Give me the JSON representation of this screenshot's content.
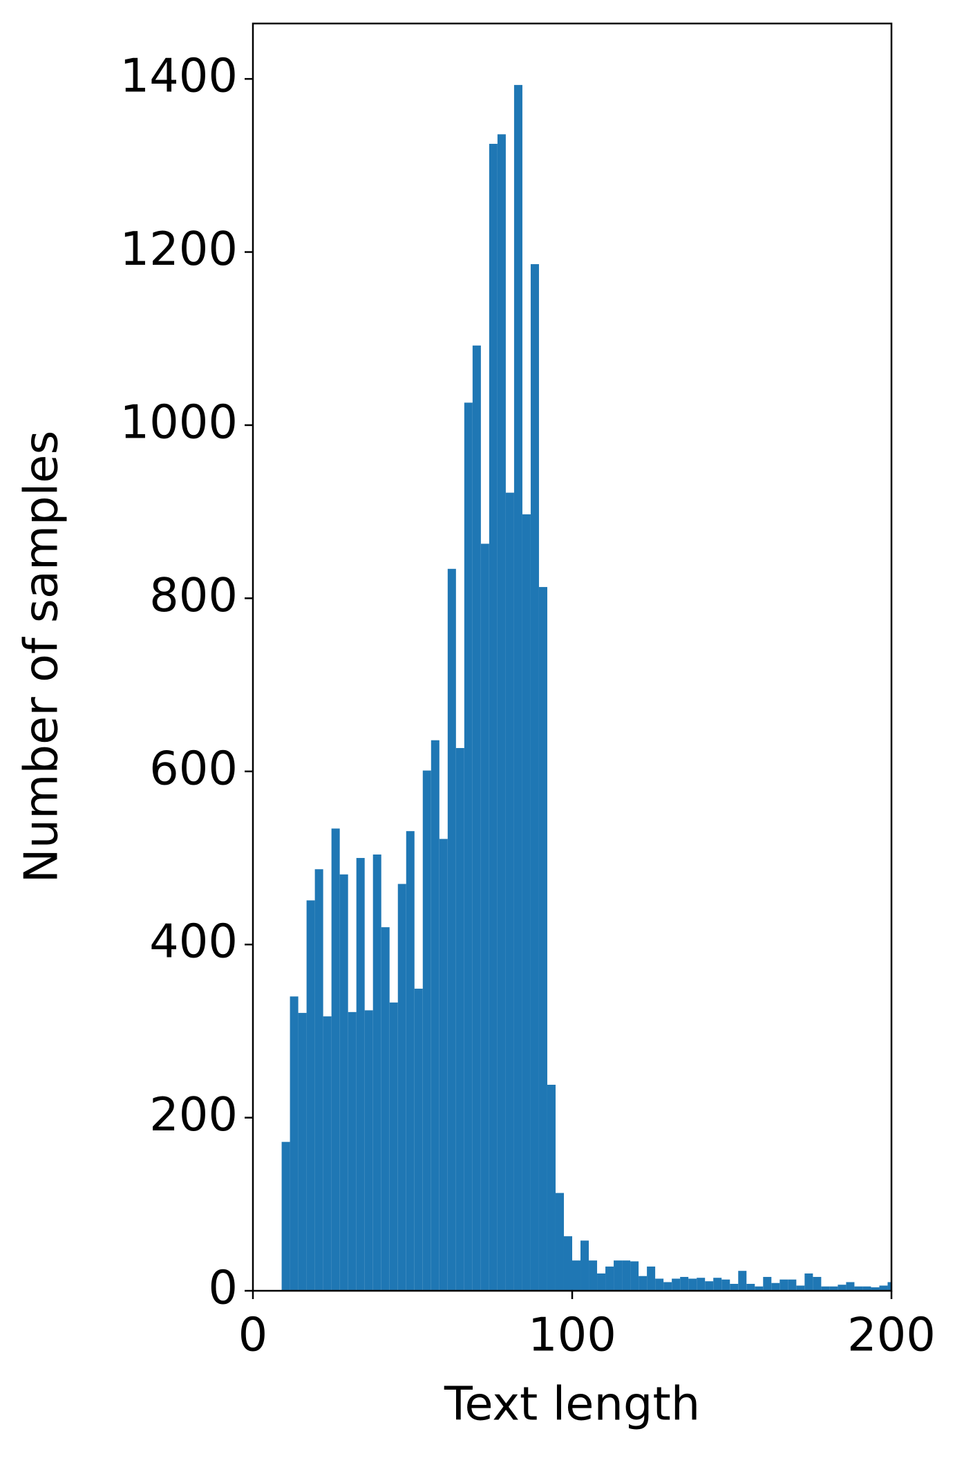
{
  "chart_data": {
    "type": "histogram",
    "xlabel": "Text length",
    "ylabel": "Number of samples",
    "color": "#1f77b4",
    "bins": [
      9,
      11.6,
      14.2,
      16.8,
      19.4,
      22,
      24.6,
      27.2,
      29.8,
      32.4,
      35,
      37.6,
      40.2,
      42.8,
      45.4,
      48,
      50.6,
      53.2,
      55.8,
      58.4,
      61,
      63.6,
      66.2,
      68.8,
      71.4,
      74,
      76.6,
      79.2,
      81.8,
      84.4,
      87,
      89.6,
      92.2,
      94.8,
      97.4,
      100,
      102.6,
      105.2,
      107.8,
      110.4,
      113,
      115.6,
      118.2,
      120.8,
      123.4,
      126,
      128.6,
      131.2,
      133.8,
      136.4,
      139,
      141.6,
      144.2,
      146.8,
      149.4,
      152,
      154.6,
      157.2,
      159.8,
      162.4,
      165,
      167.6,
      170.2,
      172.8,
      175.4,
      178,
      180.6,
      183.2,
      185.8,
      188.4,
      191,
      193.6,
      196.2,
      198.8,
      201.4
    ],
    "values": [
      172,
      340,
      321,
      451,
      487,
      317,
      534,
      481,
      322,
      500,
      324,
      504,
      420,
      333,
      470,
      531,
      349,
      601,
      636,
      522,
      834,
      627,
      1026,
      1092,
      863,
      1325,
      1336,
      922,
      1393,
      897,
      1186,
      813,
      238,
      113,
      63,
      35,
      58,
      35,
      20,
      28,
      35,
      35,
      34,
      17,
      28,
      14,
      10,
      14,
      16,
      14,
      15,
      11,
      15,
      13,
      8,
      23,
      8,
      5,
      16,
      9,
      13,
      13,
      6,
      20,
      16,
      5,
      5,
      7,
      10,
      5,
      5,
      4,
      6,
      10
    ],
    "xlim": [
      0,
      200
    ],
    "xticks": [
      0,
      100,
      200
    ],
    "ylim": [
      0,
      1464
    ],
    "yticks": [
      0,
      200,
      400,
      600,
      800,
      1000,
      1200,
      1400
    ]
  }
}
